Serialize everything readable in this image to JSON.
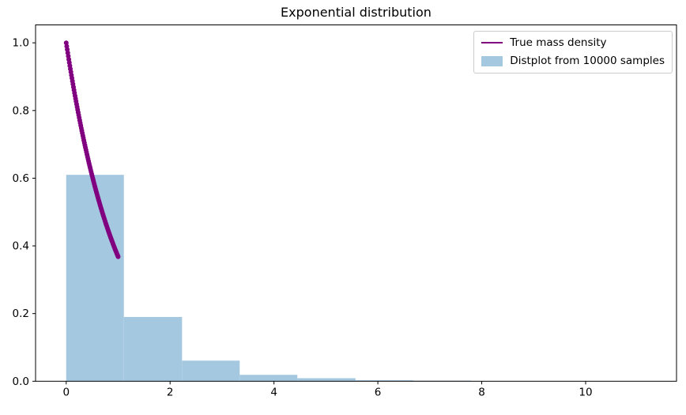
{
  "figure": {
    "background": "#ffffff"
  },
  "chart_data": {
    "type": "line+histogram",
    "title": "Exponential distribution",
    "xlabel": "",
    "ylabel": "",
    "xlim": [
      -0.59,
      11.75
    ],
    "ylim": [
      0,
      1.053
    ],
    "x_ticks": [
      0,
      2,
      4,
      6,
      8,
      10
    ],
    "x_tick_labels": [
      "0",
      "2",
      "4",
      "6",
      "8",
      "10"
    ],
    "y_ticks": [
      0,
      0.2,
      0.4,
      0.6,
      0.8,
      1.0
    ],
    "y_tick_labels": [
      "0.0",
      "0.2",
      "0.4",
      "0.6",
      "0.8",
      "1.0"
    ],
    "grid": false,
    "legend_position": "upper right",
    "colors": {
      "line": "#800080",
      "histogram": "#a5c8e1",
      "axes": "#000000",
      "legend_border": "#cccccc"
    },
    "series": [
      {
        "name": "True mass density",
        "type": "line",
        "marker": "o",
        "color": "#800080",
        "points": [
          [
            0,
            1
          ],
          [
            0.01,
            0.99
          ],
          [
            0.02,
            0.9802
          ],
          [
            0.03,
            0.9704
          ],
          [
            0.04,
            0.9608
          ],
          [
            0.05,
            0.9512
          ],
          [
            0.06,
            0.9418
          ],
          [
            0.07,
            0.9324
          ],
          [
            0.08,
            0.9231
          ],
          [
            0.09,
            0.9139
          ],
          [
            0.1,
            0.9048
          ],
          [
            0.11,
            0.8958
          ],
          [
            0.12,
            0.8869
          ],
          [
            0.13,
            0.8781
          ],
          [
            0.14,
            0.8694
          ],
          [
            0.15,
            0.8607
          ],
          [
            0.16,
            0.8521
          ],
          [
            0.17,
            0.8437
          ],
          [
            0.18,
            0.8353
          ],
          [
            0.19,
            0.827
          ],
          [
            0.2,
            0.8187
          ],
          [
            0.21,
            0.8106
          ],
          [
            0.22,
            0.8025
          ],
          [
            0.23,
            0.7945
          ],
          [
            0.24,
            0.7866
          ],
          [
            0.25,
            0.7788
          ],
          [
            0.26,
            0.7711
          ],
          [
            0.27,
            0.7634
          ],
          [
            0.28,
            0.7558
          ],
          [
            0.29,
            0.7483
          ],
          [
            0.3,
            0.7408
          ],
          [
            0.31,
            0.7334
          ],
          [
            0.32,
            0.7261
          ],
          [
            0.33,
            0.7189
          ],
          [
            0.34,
            0.7118
          ],
          [
            0.35,
            0.7047
          ],
          [
            0.36,
            0.6977
          ],
          [
            0.37,
            0.6907
          ],
          [
            0.38,
            0.6839
          ],
          [
            0.39,
            0.6771
          ],
          [
            0.4,
            0.6703
          ],
          [
            0.41,
            0.6637
          ],
          [
            0.42,
            0.657
          ],
          [
            0.43,
            0.6505
          ],
          [
            0.44,
            0.644
          ],
          [
            0.45,
            0.6376
          ],
          [
            0.46,
            0.6313
          ],
          [
            0.47,
            0.625
          ],
          [
            0.48,
            0.6188
          ],
          [
            0.49,
            0.6126
          ],
          [
            0.5,
            0.6065
          ],
          [
            0.51,
            0.6005
          ],
          [
            0.52,
            0.5945
          ],
          [
            0.53,
            0.5886
          ],
          [
            0.54,
            0.5827
          ],
          [
            0.55,
            0.5769
          ],
          [
            0.56,
            0.5712
          ],
          [
            0.57,
            0.5655
          ],
          [
            0.58,
            0.5599
          ],
          [
            0.59,
            0.5543
          ],
          [
            0.6,
            0.5488
          ],
          [
            0.61,
            0.5434
          ],
          [
            0.62,
            0.5379
          ],
          [
            0.63,
            0.5326
          ],
          [
            0.64,
            0.5273
          ],
          [
            0.65,
            0.522
          ],
          [
            0.66,
            0.5169
          ],
          [
            0.67,
            0.5117
          ],
          [
            0.68,
            0.5066
          ],
          [
            0.69,
            0.5016
          ],
          [
            0.7,
            0.4966
          ],
          [
            0.71,
            0.4916
          ],
          [
            0.72,
            0.4868
          ],
          [
            0.73,
            0.4819
          ],
          [
            0.74,
            0.4771
          ],
          [
            0.75,
            0.4724
          ],
          [
            0.76,
            0.4677
          ],
          [
            0.77,
            0.463
          ],
          [
            0.78,
            0.4584
          ],
          [
            0.79,
            0.4538
          ],
          [
            0.8,
            0.4493
          ],
          [
            0.81,
            0.4449
          ],
          [
            0.82,
            0.4404
          ],
          [
            0.83,
            0.436
          ],
          [
            0.84,
            0.4317
          ],
          [
            0.85,
            0.4274
          ],
          [
            0.86,
            0.4232
          ],
          [
            0.87,
            0.419
          ],
          [
            0.88,
            0.4148
          ],
          [
            0.89,
            0.4107
          ],
          [
            0.9,
            0.4066
          ],
          [
            0.91,
            0.4025
          ],
          [
            0.92,
            0.3985
          ],
          [
            0.93,
            0.3946
          ],
          [
            0.94,
            0.3906
          ],
          [
            0.95,
            0.3867
          ],
          [
            0.96,
            0.3829
          ],
          [
            0.97,
            0.3791
          ],
          [
            0.98,
            0.3753
          ],
          [
            0.99,
            0.3716
          ],
          [
            1,
            0.3679
          ]
        ]
      },
      {
        "name": "Distplot from 10000 samples",
        "type": "histogram_density",
        "color": "#a5c8e1",
        "bin_edges": [
          0,
          1.11,
          2.23,
          3.34,
          4.45,
          5.57,
          6.68,
          7.79,
          8.9,
          10.02,
          11.13
        ],
        "densities": [
          0.61,
          0.19,
          0.061,
          0.019,
          0.009,
          0.003,
          0.002,
          0.0004,
          0.0002,
          0.0001
        ]
      }
    ]
  }
}
